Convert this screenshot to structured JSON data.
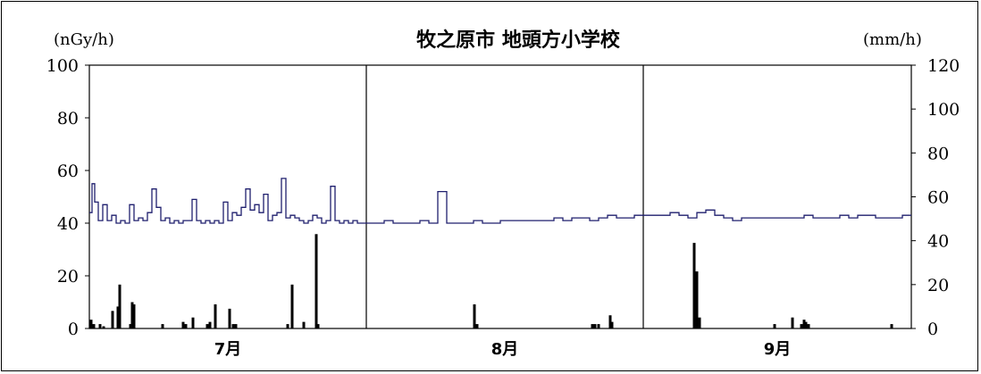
{
  "chart_data": {
    "type": "line",
    "title": "牧之原市 地頭方小学校",
    "left_unit": "(nGy/h)",
    "right_unit": "(mm/h)",
    "left_ylim": [
      0,
      100
    ],
    "left_ticks": [
      "0",
      "20",
      "40",
      "60",
      "80",
      "100"
    ],
    "right_ylim": [
      0,
      120
    ],
    "right_ticks": [
      "0",
      "20",
      "40",
      "60",
      "80",
      "100",
      "120"
    ],
    "x_months": [
      "7月",
      "8月",
      "9月"
    ],
    "month_days": [
      31,
      31,
      30
    ],
    "grid": false,
    "series": [
      {
        "axis": "left",
        "kind": "line",
        "color": "#1f1f6e",
        "x": [
          0,
          0.3,
          0.6,
          1,
          1.5,
          2,
          2.5,
          3,
          3.5,
          4,
          4.5,
          5,
          5.5,
          6,
          6.5,
          7,
          7.5,
          8,
          8.5,
          9,
          9.5,
          10,
          10.5,
          11,
          11.5,
          12,
          12.5,
          13,
          13.5,
          14,
          14.5,
          15,
          15.5,
          16,
          16.5,
          17,
          17.5,
          18,
          18.5,
          19,
          19.5,
          20,
          20.5,
          21,
          21.5,
          22,
          22.5,
          23,
          23.5,
          24,
          24.5,
          25,
          25.5,
          26,
          26.5,
          27,
          27.5,
          28,
          28.5,
          29,
          29.5,
          30,
          31,
          32,
          33,
          34,
          35,
          36,
          37,
          38,
          39,
          40,
          41,
          42,
          43,
          44,
          45,
          46,
          47,
          48,
          49,
          50,
          51,
          52,
          53,
          54,
          55,
          56,
          57,
          58,
          59,
          60,
          61,
          62,
          63,
          64,
          65,
          66,
          67,
          68,
          69,
          70,
          71,
          72,
          73,
          74,
          75,
          76,
          77,
          78,
          79,
          80,
          81,
          82,
          83,
          84,
          85,
          86,
          87,
          88,
          89,
          90,
          91,
          92
        ],
        "values": [
          44,
          55,
          48,
          41,
          47,
          41,
          43,
          40,
          41,
          40,
          47,
          41,
          42,
          41,
          44,
          53,
          46,
          41,
          42,
          40,
          41,
          40,
          41,
          41,
          49,
          41,
          40,
          41,
          40,
          41,
          40,
          48,
          41,
          44,
          43,
          46,
          53,
          45,
          47,
          44,
          51,
          41,
          43,
          44,
          57,
          42,
          43,
          42,
          41,
          40,
          41,
          43,
          42,
          40,
          41,
          54,
          41,
          40,
          41,
          40,
          41,
          40,
          40,
          40,
          41,
          40,
          40,
          40,
          41,
          40,
          52,
          40,
          40,
          40,
          41,
          40,
          40,
          41,
          41,
          41,
          41,
          41,
          41,
          42,
          41,
          42,
          42,
          41,
          42,
          43,
          42,
          42,
          43,
          43,
          43,
          43,
          44,
          43,
          42,
          44,
          45,
          43,
          42,
          41,
          42,
          42,
          42,
          42,
          42,
          42,
          42,
          43,
          42,
          42,
          42,
          43,
          42,
          43,
          43,
          42,
          42,
          42,
          43,
          43
        ]
      },
      {
        "axis": "right",
        "kind": "bar",
        "color": "#000000",
        "x": [
          0.2,
          0.5,
          1.2,
          1.6,
          2.6,
          3.2,
          3.4,
          4.6,
          4.8,
          5.0,
          8.2,
          10.5,
          10.8,
          11.6,
          13.2,
          13.5,
          14.1,
          15.7,
          16.1,
          16.4,
          22.2,
          22.7,
          24.0,
          25.4,
          25.6,
          43.1,
          43.4,
          56.3,
          56.6,
          57.0,
          58.3,
          58.5,
          67.7,
          68.0,
          68.3,
          76.7,
          78.7,
          79.7,
          80.0,
          80.2,
          80.5,
          89.8
        ],
        "values": [
          4,
          2,
          2,
          1,
          8,
          10,
          20,
          2,
          12,
          11,
          2,
          3,
          2,
          5,
          2,
          3,
          11,
          9,
          2,
          2,
          2,
          20,
          3,
          43,
          2,
          11,
          2,
          2,
          2,
          2,
          6,
          3,
          39,
          26,
          5,
          2,
          5,
          2,
          4,
          3,
          2,
          2
        ]
      }
    ]
  }
}
